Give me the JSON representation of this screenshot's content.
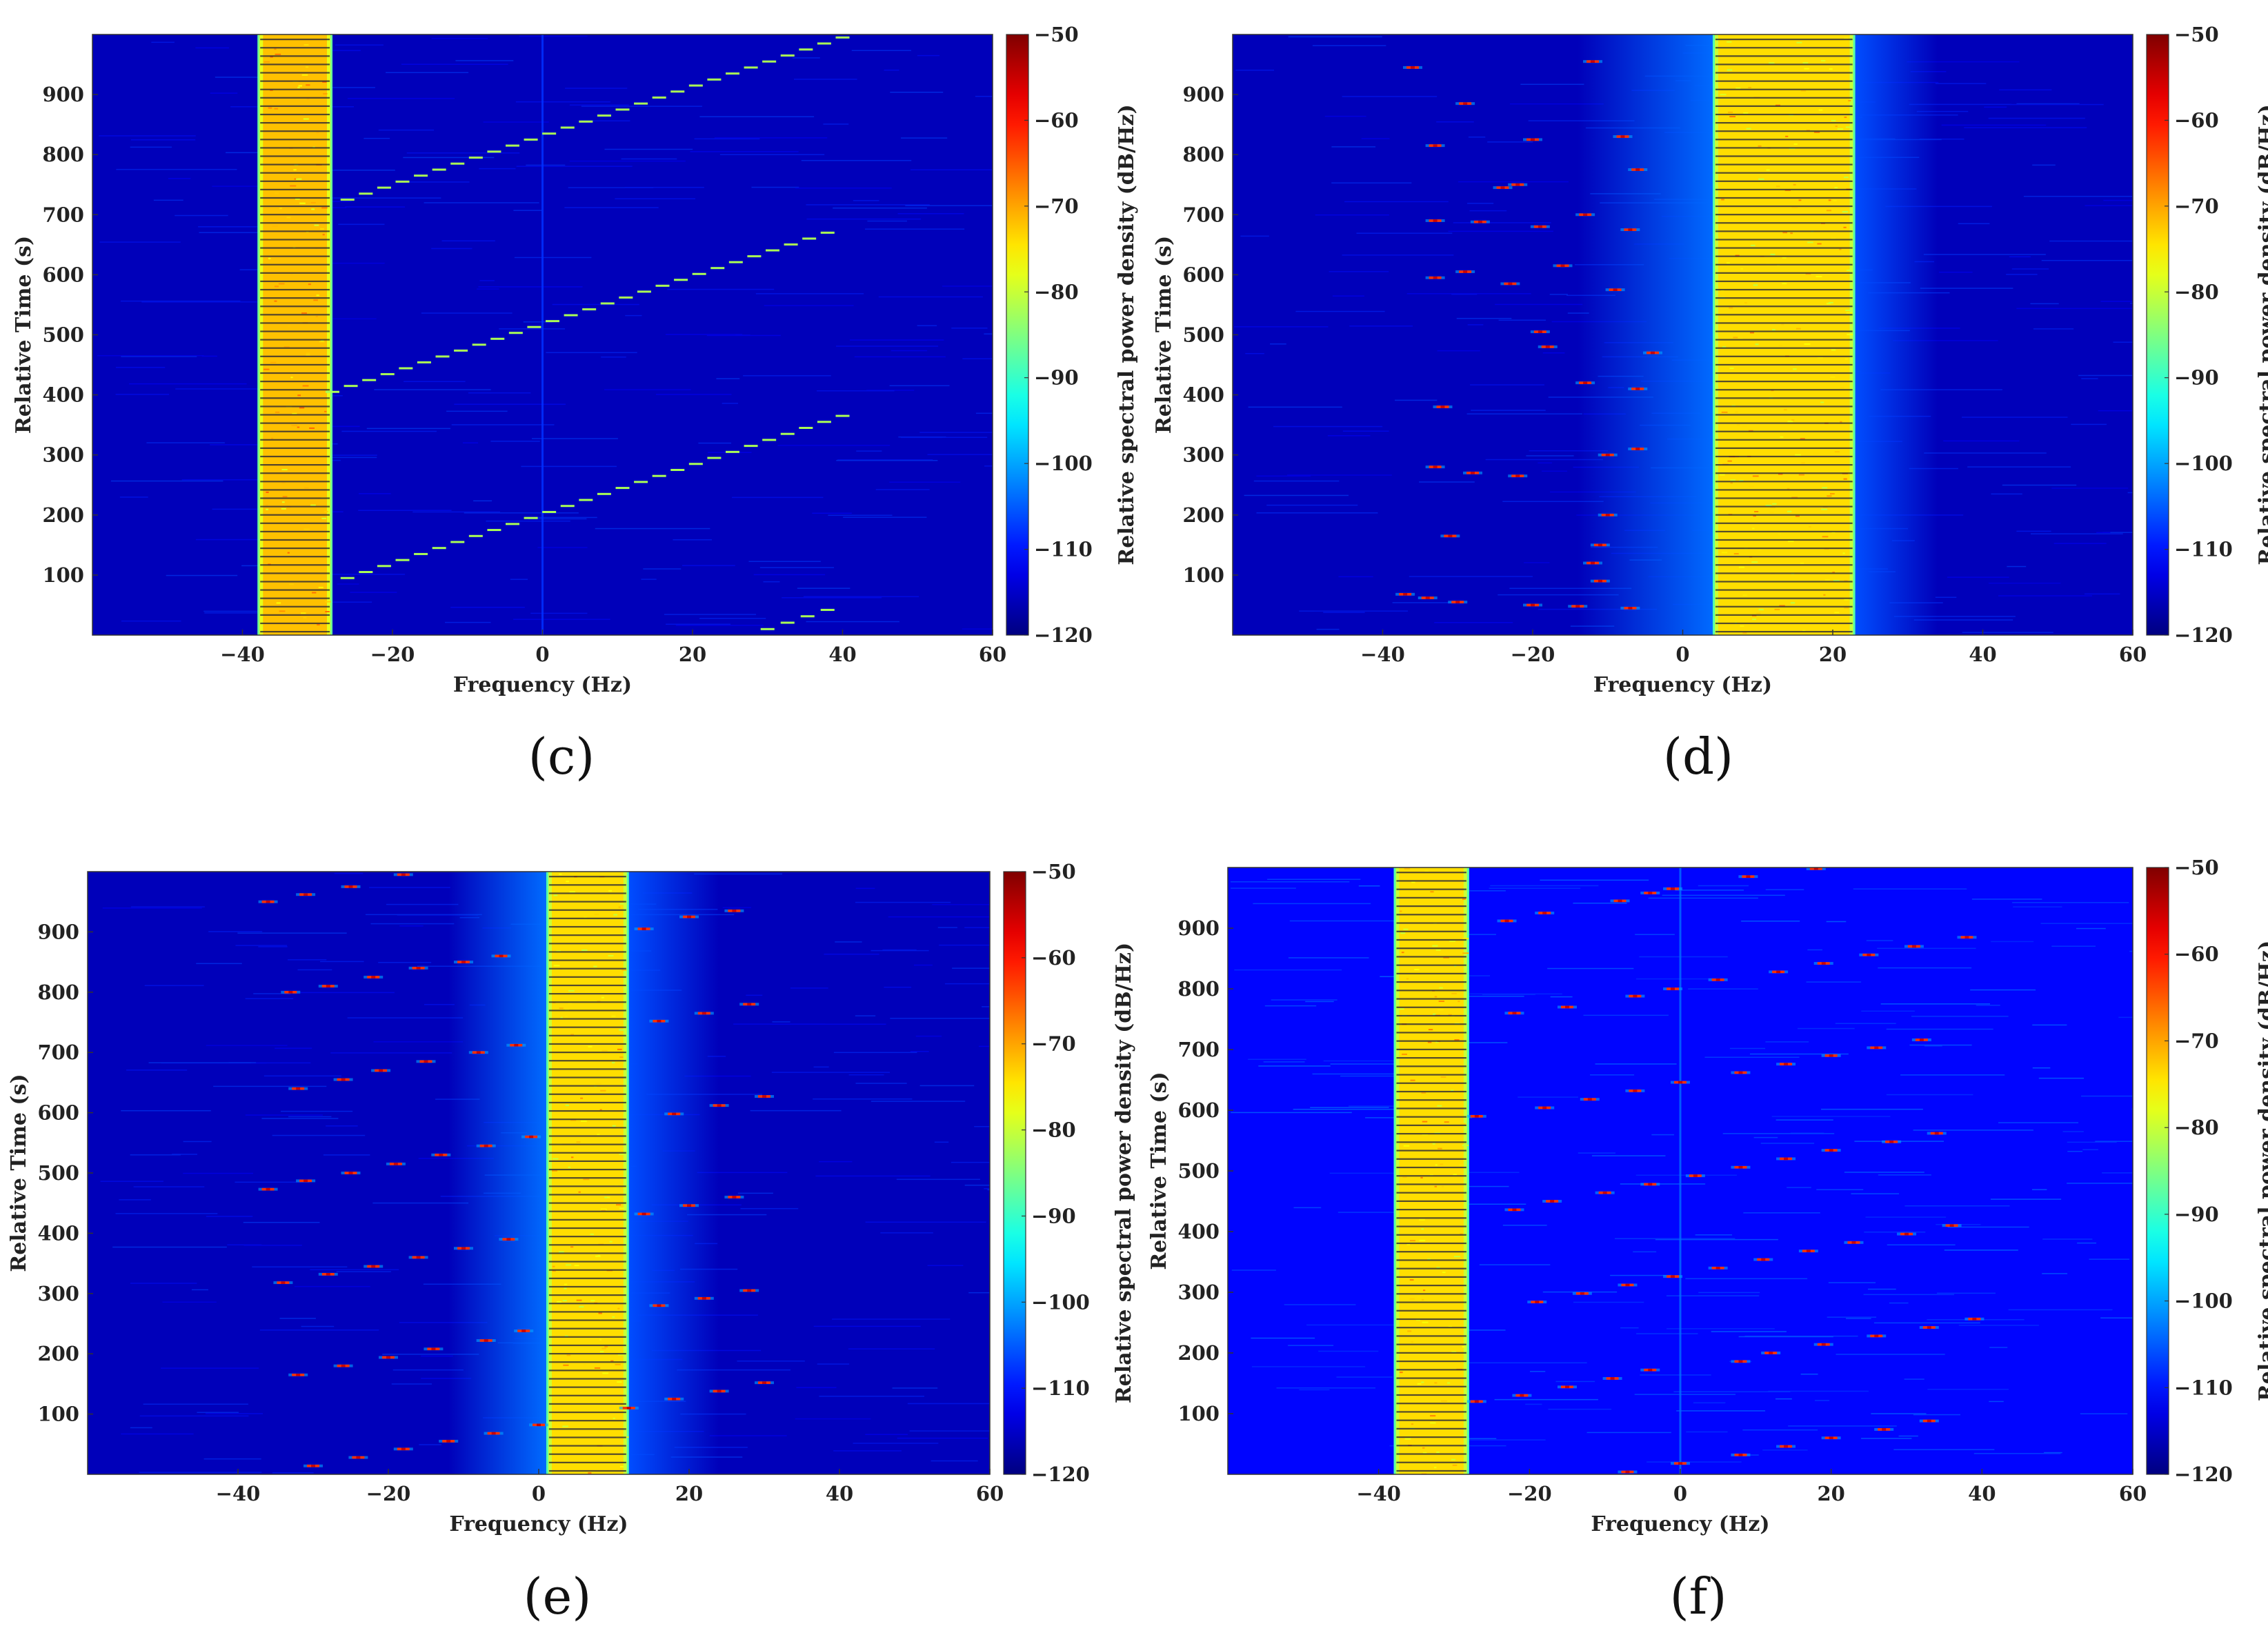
{
  "figure": {
    "panel_count": 4
  },
  "colors": {
    "background": "#00008f",
    "band_outer": "#1f5fd8",
    "band_core": "#e7a829",
    "frame": "#333333"
  },
  "chart_data": [
    {
      "type": "heatmap",
      "panel_label": "(c)",
      "title": "",
      "xlabel": "Frequency (Hz)",
      "ylabel": "Relative Time (s)",
      "colorbar_label": "Relative spectral power density (dB/Hz)",
      "xlim": [
        -60,
        60
      ],
      "ylim": [
        0,
        1000
      ],
      "xticks": [
        -40,
        -20,
        0,
        20,
        40,
        60
      ],
      "xtick_labels": [
        "−40",
        "−20",
        "0",
        "20",
        "40",
        "60"
      ],
      "yticks": [
        100,
        200,
        300,
        400,
        500,
        600,
        700,
        800,
        900
      ],
      "ytick_labels": [
        "100",
        "200",
        "300",
        "400",
        "500",
        "600",
        "700",
        "800",
        "900"
      ],
      "clim": [
        -120,
        -50
      ],
      "cticks": [
        -50,
        -60,
        -70,
        -80,
        -90,
        -100,
        -110,
        -120
      ],
      "ctick_labels": [
        "−50",
        "−60",
        "−70",
        "−80",
        "−90",
        "−100",
        "−110",
        "−120"
      ],
      "noise_level": -116,
      "haze": [],
      "bands": [
        {
          "f0": -38,
          "f1": -28,
          "level": -72,
          "striped": true
        }
      ],
      "carrier_line": {
        "f": 0,
        "level": -108
      },
      "chirps": [
        {
          "f0": -26,
          "t0": 95,
          "f1": 40,
          "t1": 365,
          "step": 10
        },
        {
          "f0": -28,
          "t0": 405,
          "f1": 38,
          "t1": 670,
          "step": 10
        },
        {
          "f0": -26,
          "t0": 725,
          "f1": 40,
          "t1": 995,
          "step": 10
        },
        {
          "f0": 30,
          "t0": 10,
          "f1": 38,
          "t1": 42,
          "step": 10
        }
      ],
      "scatter": []
    },
    {
      "type": "heatmap",
      "panel_label": "(d)",
      "title": "",
      "xlabel": "Frequency (Hz)",
      "ylabel": "Relative Time (s)",
      "colorbar_label": "Relative spectral power density (dB/Hz)",
      "xlim": [
        -60,
        60
      ],
      "ylim": [
        0,
        1000
      ],
      "xticks": [
        -40,
        -20,
        0,
        20,
        40,
        60
      ],
      "xtick_labels": [
        "−40",
        "−20",
        "0",
        "20",
        "40",
        "60"
      ],
      "yticks": [
        100,
        200,
        300,
        400,
        500,
        600,
        700,
        800,
        900
      ],
      "ytick_labels": [
        "100",
        "200",
        "300",
        "400",
        "500",
        "600",
        "700",
        "800",
        "900"
      ],
      "clim": [
        -120,
        -50
      ],
      "cticks": [
        -50,
        -60,
        -70,
        -80,
        -90,
        -100,
        -110,
        -120
      ],
      "ctick_labels": [
        "−50",
        "−60",
        "−70",
        "−80",
        "−90",
        "−100",
        "−110",
        "−120"
      ],
      "noise_level": -116,
      "haze": [
        {
          "f0": -14,
          "f1": 4,
          "level": -104,
          "fade": "left"
        },
        {
          "f0": 23,
          "f1": 34,
          "level": -106,
          "fade": "right"
        }
      ],
      "bands": [
        {
          "f0": 4,
          "f1": 23,
          "level": -74,
          "striped": true
        }
      ],
      "carrier_line": null,
      "chirps": [],
      "scatter": [
        {
          "f": -36,
          "t": 945
        },
        {
          "f": -29,
          "t": 885
        },
        {
          "f": -12,
          "t": 955
        },
        {
          "f": -20,
          "t": 825
        },
        {
          "f": -8,
          "t": 830
        },
        {
          "f": -33,
          "t": 815
        },
        {
          "f": -22,
          "t": 750
        },
        {
          "f": -24,
          "t": 745
        },
        {
          "f": -6,
          "t": 775
        },
        {
          "f": -13,
          "t": 700
        },
        {
          "f": -33,
          "t": 690
        },
        {
          "f": -27,
          "t": 688
        },
        {
          "f": -19,
          "t": 680
        },
        {
          "f": -7,
          "t": 675
        },
        {
          "f": -16,
          "t": 615
        },
        {
          "f": -29,
          "t": 605
        },
        {
          "f": -33,
          "t": 595
        },
        {
          "f": -23,
          "t": 585
        },
        {
          "f": -9,
          "t": 575
        },
        {
          "f": -19,
          "t": 505
        },
        {
          "f": -18,
          "t": 480
        },
        {
          "f": -4,
          "t": 470
        },
        {
          "f": -13,
          "t": 420
        },
        {
          "f": -6,
          "t": 410
        },
        {
          "f": -32,
          "t": 380
        },
        {
          "f": -6,
          "t": 310
        },
        {
          "f": -10,
          "t": 300
        },
        {
          "f": -33,
          "t": 280
        },
        {
          "f": -28,
          "t": 270
        },
        {
          "f": -22,
          "t": 265
        },
        {
          "f": -10,
          "t": 200
        },
        {
          "f": -31,
          "t": 165
        },
        {
          "f": -11,
          "t": 150
        },
        {
          "f": -12,
          "t": 120
        },
        {
          "f": -11,
          "t": 90
        },
        {
          "f": -37,
          "t": 68
        },
        {
          "f": -34,
          "t": 62
        },
        {
          "f": -30,
          "t": 55
        },
        {
          "f": -20,
          "t": 50
        },
        {
          "f": -14,
          "t": 48
        },
        {
          "f": -7,
          "t": 45
        }
      ]
    },
    {
      "type": "heatmap",
      "panel_label": "(e)",
      "title": "",
      "xlabel": "Frequency (Hz)",
      "ylabel": "Relative Time (s)",
      "colorbar_label": "Relative spectral power density (dB/Hz)",
      "xlim": [
        -60,
        60
      ],
      "ylim": [
        0,
        1000
      ],
      "xticks": [
        -40,
        -20,
        0,
        20,
        40,
        60
      ],
      "xtick_labels": [
        "−40",
        "−20",
        "0",
        "20",
        "40",
        "60"
      ],
      "yticks": [
        100,
        200,
        300,
        400,
        500,
        600,
        700,
        800,
        900
      ],
      "ytick_labels": [
        "100",
        "200",
        "300",
        "400",
        "500",
        "600",
        "700",
        "800",
        "900"
      ],
      "clim": [
        -120,
        -50
      ],
      "cticks": [
        -50,
        -60,
        -70,
        -80,
        -90,
        -100,
        -110,
        -120
      ],
      "ctick_labels": [
        "−50",
        "−60",
        "−70",
        "−80",
        "−90",
        "−100",
        "−110",
        "−120"
      ],
      "noise_level": -116,
      "haze": [
        {
          "f0": -12,
          "f1": 1,
          "level": -104,
          "fade": "left"
        },
        {
          "f0": 12,
          "f1": 24,
          "level": -106,
          "fade": "right"
        }
      ],
      "bands": [
        {
          "f0": 1,
          "f1": 12,
          "level": -74,
          "striped": true
        }
      ],
      "carrier_line": null,
      "chirps": [],
      "scatter": [
        {
          "f": -36,
          "t": 950
        },
        {
          "f": -31,
          "t": 962
        },
        {
          "f": -25,
          "t": 975
        },
        {
          "f": -18,
          "t": 995
        },
        {
          "f": -10,
          "t": 850
        },
        {
          "f": -5,
          "t": 860
        },
        {
          "f": 14,
          "t": 905
        },
        {
          "f": 20,
          "t": 925
        },
        {
          "f": 26,
          "t": 935
        },
        {
          "f": -33,
          "t": 800
        },
        {
          "f": -28,
          "t": 810
        },
        {
          "f": -22,
          "t": 825
        },
        {
          "f": -16,
          "t": 840
        },
        {
          "f": -3,
          "t": 712
        },
        {
          "f": -8,
          "t": 700
        },
        {
          "f": -15,
          "t": 685
        },
        {
          "f": -21,
          "t": 670
        },
        {
          "f": -26,
          "t": 655
        },
        {
          "f": -32,
          "t": 640
        },
        {
          "f": 16,
          "t": 752
        },
        {
          "f": 22,
          "t": 765
        },
        {
          "f": 28,
          "t": 780
        },
        {
          "f": -1,
          "t": 560
        },
        {
          "f": -7,
          "t": 545
        },
        {
          "f": -13,
          "t": 530
        },
        {
          "f": -19,
          "t": 515
        },
        {
          "f": -25,
          "t": 500
        },
        {
          "f": -31,
          "t": 487
        },
        {
          "f": -36,
          "t": 473
        },
        {
          "f": 18,
          "t": 598
        },
        {
          "f": 24,
          "t": 612
        },
        {
          "f": 30,
          "t": 627
        },
        {
          "f": -4,
          "t": 390
        },
        {
          "f": -10,
          "t": 375
        },
        {
          "f": -16,
          "t": 360
        },
        {
          "f": -22,
          "t": 345
        },
        {
          "f": -28,
          "t": 332
        },
        {
          "f": -34,
          "t": 318
        },
        {
          "f": 14,
          "t": 432
        },
        {
          "f": 20,
          "t": 446
        },
        {
          "f": 26,
          "t": 460
        },
        {
          "f": -2,
          "t": 238
        },
        {
          "f": -7,
          "t": 222
        },
        {
          "f": -14,
          "t": 208
        },
        {
          "f": -20,
          "t": 194
        },
        {
          "f": -26,
          "t": 180
        },
        {
          "f": -32,
          "t": 165
        },
        {
          "f": 16,
          "t": 280
        },
        {
          "f": 22,
          "t": 292
        },
        {
          "f": 28,
          "t": 305
        },
        {
          "f": -6,
          "t": 68
        },
        {
          "f": -12,
          "t": 55
        },
        {
          "f": -18,
          "t": 42
        },
        {
          "f": -24,
          "t": 28
        },
        {
          "f": -30,
          "t": 14
        },
        {
          "f": 0,
          "t": 82
        },
        {
          "f": 18,
          "t": 125
        },
        {
          "f": 24,
          "t": 138
        },
        {
          "f": 30,
          "t": 152
        },
        {
          "f": 12,
          "t": 110
        }
      ]
    },
    {
      "type": "heatmap",
      "panel_label": "(f)",
      "title": "",
      "xlabel": "Frequency (Hz)",
      "ylabel": "Relative Time (s)",
      "colorbar_label": "Relative spectral power density (dB/Hz)",
      "xlim": [
        -60,
        60
      ],
      "ylim": [
        0,
        1000
      ],
      "xticks": [
        -40,
        -20,
        0,
        20,
        40,
        60
      ],
      "xtick_labels": [
        "−40",
        "−20",
        "0",
        "20",
        "40",
        "60"
      ],
      "yticks": [
        100,
        200,
        300,
        400,
        500,
        600,
        700,
        800,
        900
      ],
      "ytick_labels": [
        "100",
        "200",
        "300",
        "400",
        "500",
        "600",
        "700",
        "800",
        "900"
      ],
      "clim": [
        -120,
        -50
      ],
      "cticks": [
        -50,
        -60,
        -70,
        -80,
        -90,
        -100,
        -110,
        -120
      ],
      "ctick_labels": [
        "−50",
        "−60",
        "−70",
        "−80",
        "−90",
        "−100",
        "−110",
        "−120"
      ],
      "noise_level": -111,
      "haze": [],
      "bands": [
        {
          "f0": -38,
          "f1": -28,
          "level": -74,
          "striped": true
        }
      ],
      "carrier_line": {
        "f": 0,
        "level": -104
      },
      "chirps": [],
      "scatter": [
        {
          "f": -1,
          "t": 965
        },
        {
          "f": 9,
          "t": 985
        },
        {
          "f": 18,
          "t": 998
        },
        {
          "f": -18,
          "t": 925
        },
        {
          "f": -23,
          "t": 912
        },
        {
          "f": -8,
          "t": 945
        },
        {
          "f": -4,
          "t": 958
        },
        {
          "f": 13,
          "t": 828
        },
        {
          "f": 19,
          "t": 842
        },
        {
          "f": 25,
          "t": 856
        },
        {
          "f": 31,
          "t": 870
        },
        {
          "f": 38,
          "t": 885
        },
        {
          "f": -1,
          "t": 800
        },
        {
          "f": 5,
          "t": 815
        },
        {
          "f": -15,
          "t": 770
        },
        {
          "f": -22,
          "t": 760
        },
        {
          "f": -6,
          "t": 788
        },
        {
          "f": 20,
          "t": 690
        },
        {
          "f": 26,
          "t": 703
        },
        {
          "f": 32,
          "t": 716
        },
        {
          "f": 8,
          "t": 662
        },
        {
          "f": 14,
          "t": 676
        },
        {
          "f": -6,
          "t": 632
        },
        {
          "f": 0,
          "t": 646
        },
        {
          "f": -12,
          "t": 618
        },
        {
          "f": -18,
          "t": 604
        },
        {
          "f": -27,
          "t": 590
        },
        {
          "f": 28,
          "t": 548
        },
        {
          "f": 34,
          "t": 562
        },
        {
          "f": 14,
          "t": 520
        },
        {
          "f": 20,
          "t": 534
        },
        {
          "f": 8,
          "t": 506
        },
        {
          "f": -4,
          "t": 478
        },
        {
          "f": 2,
          "t": 492
        },
        {
          "f": -10,
          "t": 464
        },
        {
          "f": -17,
          "t": 450
        },
        {
          "f": -22,
          "t": 436
        },
        {
          "f": 23,
          "t": 382
        },
        {
          "f": 30,
          "t": 396
        },
        {
          "f": 36,
          "t": 410
        },
        {
          "f": 11,
          "t": 354
        },
        {
          "f": 17,
          "t": 368
        },
        {
          "f": -1,
          "t": 326
        },
        {
          "f": 5,
          "t": 340
        },
        {
          "f": -7,
          "t": 312
        },
        {
          "f": -13,
          "t": 298
        },
        {
          "f": -19,
          "t": 284
        },
        {
          "f": 33,
          "t": 242
        },
        {
          "f": 39,
          "t": 256
        },
        {
          "f": 19,
          "t": 214
        },
        {
          "f": 26,
          "t": 228
        },
        {
          "f": 8,
          "t": 186
        },
        {
          "f": 12,
          "t": 200
        },
        {
          "f": -4,
          "t": 172
        },
        {
          "f": -9,
          "t": 158
        },
        {
          "f": -15,
          "t": 144
        },
        {
          "f": -21,
          "t": 130
        },
        {
          "f": 27,
          "t": 74
        },
        {
          "f": 33,
          "t": 88
        },
        {
          "f": 14,
          "t": 46
        },
        {
          "f": 20,
          "t": 60
        },
        {
          "f": 8,
          "t": 32
        },
        {
          "f": 0,
          "t": 18
        },
        {
          "f": -7,
          "t": 4
        },
        {
          "f": -27,
          "t": 120
        }
      ]
    }
  ]
}
